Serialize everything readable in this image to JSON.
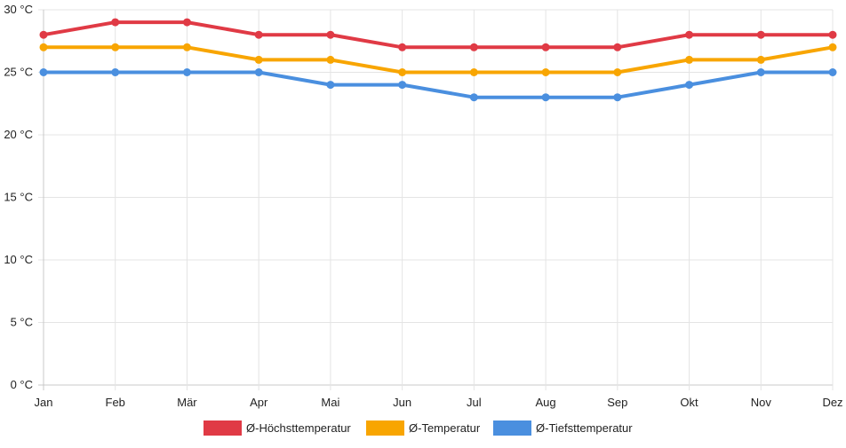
{
  "chart_data": {
    "type": "line",
    "categories": [
      "Jan",
      "Feb",
      "Mär",
      "Apr",
      "Mai",
      "Jun",
      "Jul",
      "Aug",
      "Sep",
      "Okt",
      "Nov",
      "Dez"
    ],
    "yticks": [
      "0 °C",
      "5 °C",
      "10 °C",
      "15 °C",
      "20 °C",
      "25 °C",
      "30 °C"
    ],
    "ylim": [
      0,
      30
    ],
    "grid": true,
    "legend_position": "bottom",
    "series": [
      {
        "name": "Ø-Höchsttemperatur",
        "color": "#e03a45",
        "values": [
          28,
          29,
          29,
          28,
          28,
          27,
          27,
          27,
          27,
          28,
          28,
          28
        ]
      },
      {
        "name": "Ø-Temperatur",
        "color": "#f8a501",
        "values": [
          27,
          27,
          27,
          26,
          26,
          25,
          25,
          25,
          25,
          26,
          26,
          27
        ]
      },
      {
        "name": "Ø-Tiefsttemperatur",
        "color": "#4a8fdf",
        "values": [
          25,
          25,
          25,
          25,
          24,
          24,
          23,
          23,
          23,
          24,
          25,
          25
        ]
      }
    ]
  }
}
